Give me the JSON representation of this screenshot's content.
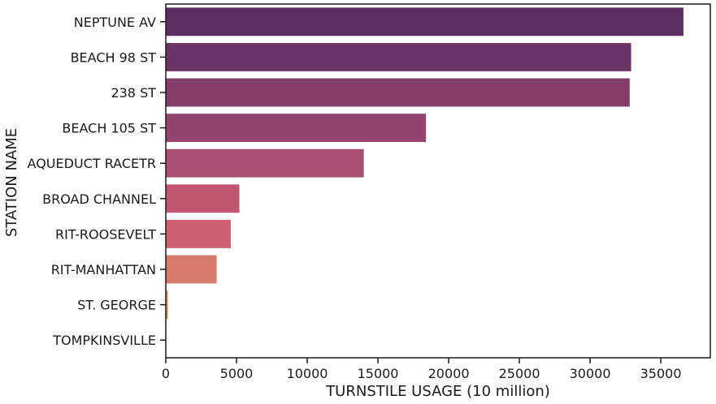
{
  "chart_data": {
    "type": "bar",
    "orientation": "horizontal",
    "title": "",
    "xlabel": "TURNSTILE USAGE (10 million)",
    "ylabel": "STATION NAME",
    "xlim": [
      0,
      38500
    ],
    "xticks": [
      "0",
      "5000",
      "10000",
      "15000",
      "20000",
      "25000",
      "30000",
      "35000"
    ],
    "grid": false,
    "categories": [
      "NEPTUNE AV",
      "BEACH 98 ST",
      "238 ST",
      "BEACH 105 ST",
      "AQUEDUCT RACETR",
      "BROAD CHANNEL",
      "RIT-ROOSEVELT",
      "RIT-MANHATTAN",
      "ST. GEORGE",
      "TOMPKINSVILLE"
    ],
    "values": [
      36600,
      32900,
      32800,
      18400,
      14000,
      5200,
      4600,
      3600,
      150,
      0
    ],
    "colors": [
      "#5b2f62",
      "#6c3567",
      "#833d6b",
      "#93456f",
      "#aa5071",
      "#bf5570",
      "#cc626f",
      "#d57c6d",
      "#db8f6d",
      "#e3a880"
    ]
  }
}
